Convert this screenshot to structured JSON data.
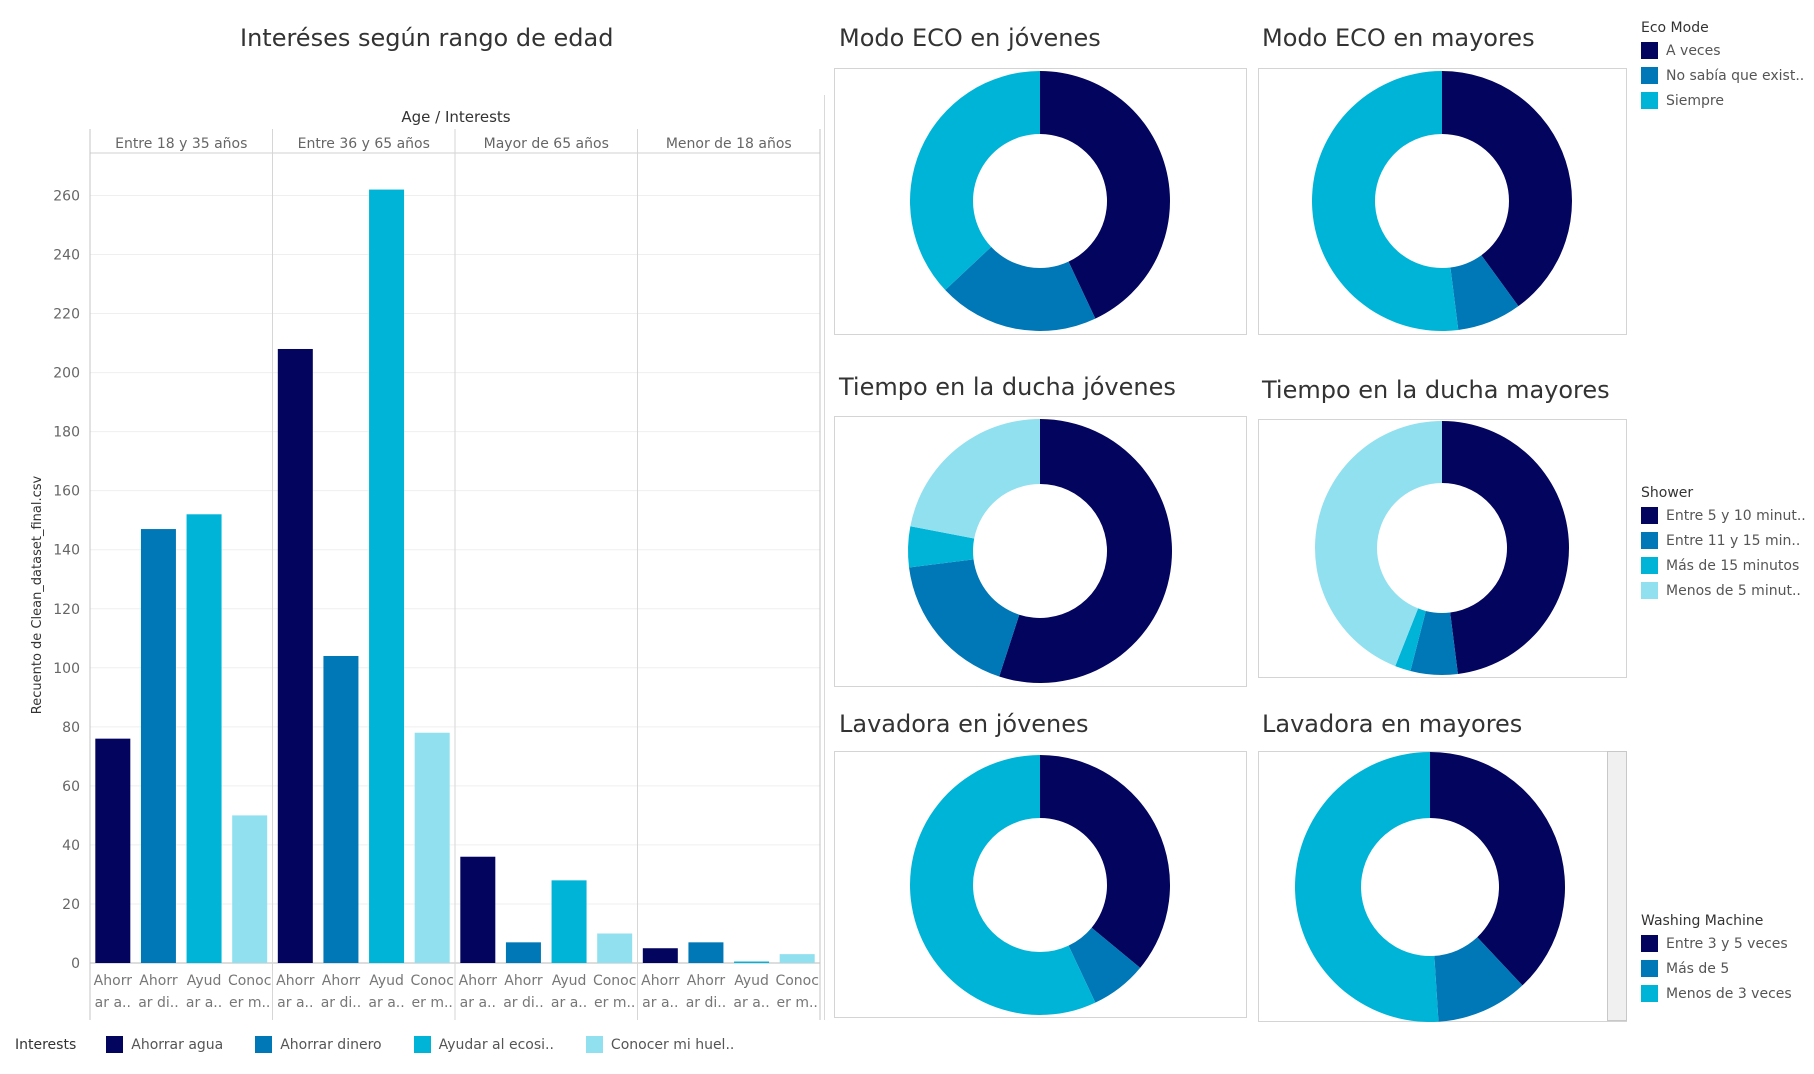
{
  "bar_title": "Interéses según rango de edad",
  "header_label": "Age  /  Interests",
  "y_axis_label": "Recuento de Clean_dataset_final.csv",
  "groups": [
    "Entre 18 y 35 años",
    "Entre 36 y 65 años",
    "Mayor de 65 años",
    "Menor de 18 años"
  ],
  "x_tick_lines": [
    [
      "Ahorr",
      "ar a.."
    ],
    [
      "Ahorr",
      "ar di.."
    ],
    [
      "Ayud",
      "ar a.."
    ],
    [
      "Conoc",
      "er m.."
    ]
  ],
  "interests_legend": {
    "title": "Interests",
    "items": [
      "Ahorrar agua",
      "Ahorrar dinero",
      "Ayudar al ecosi..",
      "Conocer mi huel.."
    ]
  },
  "colors": [
    "#03045e",
    "#0077b6",
    "#00b4d8",
    "#90e0ef"
  ],
  "chart_data": [
    {
      "type": "bar",
      "title": "Interéses según rango de edad",
      "xlabel": "Age / Interests",
      "ylabel": "Recuento de Clean_dataset_final.csv",
      "ylim": [
        0,
        270
      ],
      "yticks": [
        0,
        20,
        40,
        60,
        80,
        100,
        120,
        140,
        160,
        180,
        200,
        220,
        240,
        260
      ],
      "grid": true,
      "legend": "bottom",
      "categories": [
        "Entre 18 y 35 años",
        "Entre 36 y 65 años",
        "Mayor de 65 años",
        "Menor de 18 años"
      ],
      "series": [
        {
          "name": "Ahorrar agua",
          "values": [
            76,
            208,
            36,
            5
          ]
        },
        {
          "name": "Ahorrar dinero",
          "values": [
            147,
            104,
            7,
            7
          ]
        },
        {
          "name": "Ayudar al ecosi..",
          "values": [
            152,
            262,
            28,
            0.5
          ]
        },
        {
          "name": "Conocer mi huel..",
          "values": [
            50,
            78,
            10,
            3
          ]
        }
      ]
    },
    {
      "type": "pie",
      "title": "Modo ECO en jóvenes",
      "labels": [
        "A veces",
        "No sabía que exist..",
        "Siempre"
      ],
      "values": [
        43,
        20,
        37
      ]
    },
    {
      "type": "pie",
      "title": "Modo ECO en mayores",
      "labels": [
        "A veces",
        "No sabía que exist..",
        "Siempre"
      ],
      "values": [
        40,
        8,
        52
      ]
    },
    {
      "type": "pie",
      "title": "Tiempo en la ducha jóvenes",
      "labels": [
        "Entre 5 y 10 minut..",
        "Entre 11 y 15 min..",
        "Más de 15 minutos",
        "Menos de 5 minut.."
      ],
      "values": [
        55,
        18,
        5,
        22
      ]
    },
    {
      "type": "pie",
      "title": "Tiempo en la ducha mayores",
      "labels": [
        "Entre 5 y 10 minut..",
        "Entre 11 y 15 min..",
        "Más de 15 minutos",
        "Menos de 5 minut.."
      ],
      "values": [
        48,
        6,
        2,
        44
      ]
    },
    {
      "type": "pie",
      "title": "Lavadora en jóvenes",
      "labels": [
        "Entre 3 y 5 veces",
        "Más de 5",
        "Menos de 3 veces"
      ],
      "values": [
        36,
        7,
        57
      ]
    },
    {
      "type": "pie",
      "title": "Lavadora en mayores",
      "labels": [
        "Entre 3 y 5 veces",
        "Más de 5",
        "Menos de 3 veces"
      ],
      "values": [
        38,
        11,
        51
      ]
    }
  ],
  "legends": [
    {
      "title": "Eco Mode",
      "items": [
        "A veces",
        "No sabía que exist..",
        "Siempre"
      ],
      "colors": [
        "#03045e",
        "#0077b6",
        "#00b4d8"
      ]
    },
    {
      "title": "Shower",
      "items": [
        "Entre 5 y 10 minut..",
        "Entre 11 y 15 min..",
        "Más de 15 minutos",
        "Menos de 5 minut.."
      ],
      "colors": [
        "#03045e",
        "#0077b6",
        "#00b4d8",
        "#90e0ef"
      ]
    },
    {
      "title": "Washing Machine",
      "items": [
        "Entre 3 y 5 veces",
        "Más de 5",
        "Menos de 3 veces"
      ],
      "colors": [
        "#03045e",
        "#0077b6",
        "#00b4d8"
      ]
    }
  ]
}
